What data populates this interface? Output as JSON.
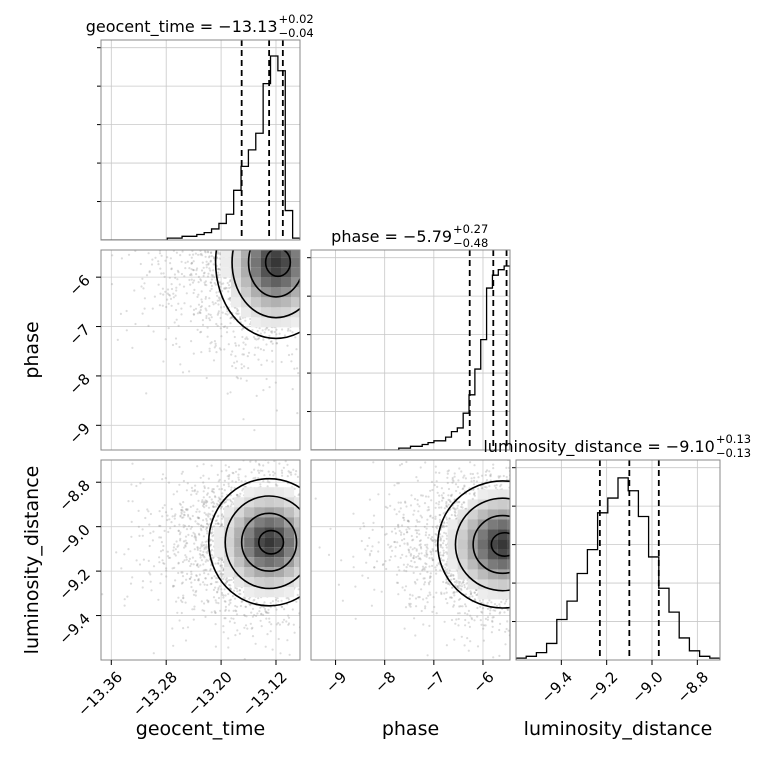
{
  "chart_data": {
    "type": "corner",
    "parameters": [
      {
        "name": "geocent_time",
        "axis_label": "geocent_time",
        "range": [
          -13.375,
          -13.085
        ],
        "ticks": [
          -13.36,
          -13.28,
          -13.2,
          -13.12
        ],
        "tick_labels": [
          "−13.36",
          "−13.28",
          "−13.20",
          "−13.12"
        ],
        "title": {
          "base": "geocent_time = −13.13",
          "sup": "+0.02",
          "sub": "−0.04"
        },
        "quantiles": [
          -13.17,
          -13.13,
          -13.11
        ],
        "hist": [
          0.0,
          0.0,
          0.0,
          0.0,
          0.0,
          0.0,
          0.0,
          0.0,
          0.0,
          0.01,
          0.01,
          0.02,
          0.02,
          0.03,
          0.04,
          0.06,
          0.09,
          0.14,
          0.27,
          0.4,
          0.49,
          0.58,
          0.85,
          1.0,
          0.92,
          0.16,
          0.01
        ]
      },
      {
        "name": "phase",
        "axis_label": "phase",
        "range": [
          -9.5,
          -5.45
        ],
        "ticks": [
          -9,
          -8,
          -7,
          -6
        ],
        "tick_labels": [
          "−9",
          "−8",
          "−7",
          "−6"
        ],
        "title": {
          "base": "phase = −5.79",
          "sup": "+0.27",
          "sub": "−0.48"
        },
        "quantiles": [
          -6.27,
          -5.79,
          -5.52
        ],
        "hist": [
          0.0,
          0.0,
          0.0,
          0.0,
          0.0,
          0.0,
          0.0,
          0.0,
          0.0,
          0.0,
          0.0,
          0.0,
          0.0,
          0.0,
          0.0,
          0.01,
          0.01,
          0.02,
          0.02,
          0.03,
          0.04,
          0.05,
          0.05,
          0.07,
          0.1,
          0.12,
          0.2,
          0.3,
          0.44,
          0.6,
          0.88,
          0.95,
          0.98,
          1.0
        ]
      },
      {
        "name": "luminosity_distance",
        "axis_label": "luminosity_distance",
        "range": [
          -9.6,
          -8.7
        ],
        "ticks": [
          -9.4,
          -9.2,
          -9.0,
          -8.8
        ],
        "tick_labels": [
          "−9.4",
          "−9.2",
          "−9.0",
          "−8.8"
        ],
        "title": {
          "base": "luminosity_distance = −9.10",
          "sup": "+0.13",
          "sub": "−0.13"
        },
        "quantiles": [
          -9.23,
          -9.1,
          -8.97
        ],
        "hist": [
          0.01,
          0.02,
          0.04,
          0.09,
          0.22,
          0.32,
          0.47,
          0.6,
          0.8,
          0.88,
          0.99,
          0.92,
          0.78,
          0.56,
          0.39,
          0.26,
          0.12,
          0.05,
          0.02,
          0.01
        ]
      }
    ],
    "pairs": [
      {
        "x": "geocent_time",
        "y": "phase",
        "center": [
          -13.12,
          -5.7
        ],
        "spread": [
          0.04,
          0.7
        ]
      },
      {
        "x": "geocent_time",
        "y": "luminosity_distance",
        "center": [
          -13.13,
          -9.07
        ],
        "spread": [
          0.04,
          0.13
        ]
      },
      {
        "x": "phase",
        "y": "luminosity_distance",
        "center": [
          -5.6,
          -9.08
        ],
        "spread": [
          0.6,
          0.13
        ]
      }
    ],
    "grid": true,
    "quantile_line_style": "dashed"
  }
}
